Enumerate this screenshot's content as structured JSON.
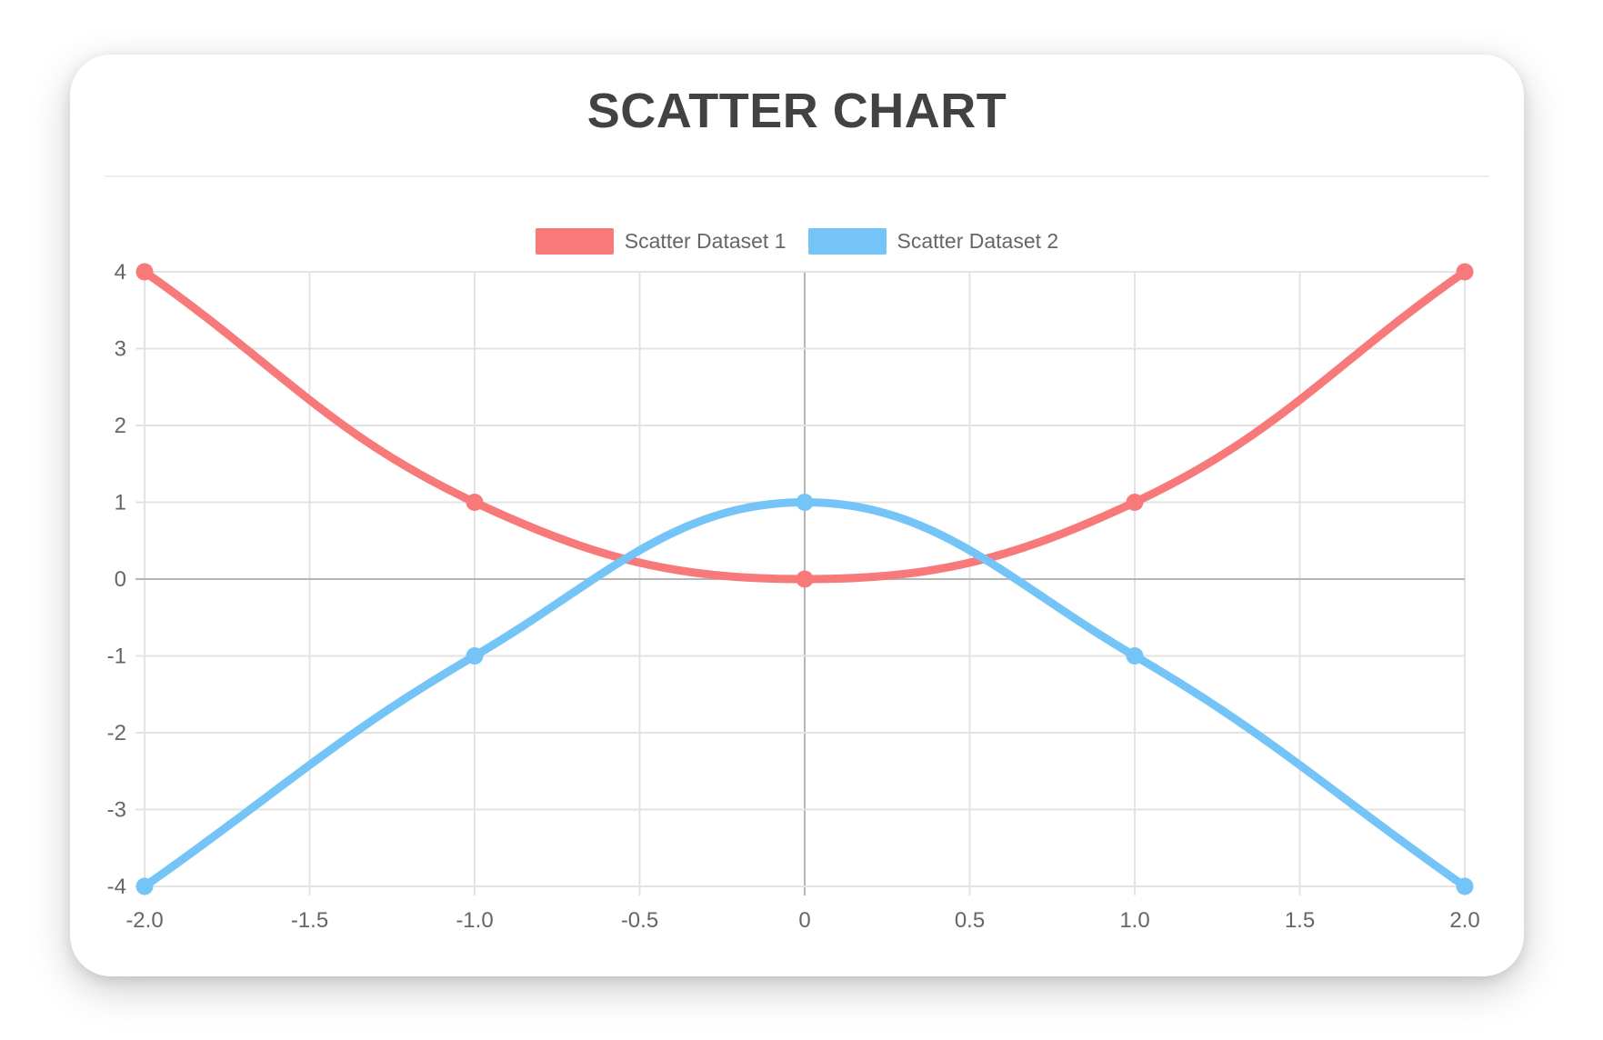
{
  "title": {
    "text": "SCATTER CHART"
  },
  "legend": {
    "items": [
      {
        "label": "Scatter Dataset 1",
        "color": "#f87979"
      },
      {
        "label": "Scatter Dataset 2",
        "color": "#74c4f7"
      }
    ]
  },
  "colors": {
    "grid": "#e3e3e3",
    "zero_line": "#b5b5b5",
    "tick_text": "#666666",
    "title_text": "#424242",
    "legend_text": "#666666",
    "divider": "#eeeeee",
    "card_bg": "#ffffff",
    "page_bg": "#ffffff"
  },
  "chart_data": {
    "type": "scatter",
    "title": "SCATTER CHART",
    "legend_position": "top",
    "grid": true,
    "xlim": [
      -2,
      2
    ],
    "ylim": [
      -4,
      4
    ],
    "x_ticks": {
      "values": [
        -2,
        -1.5,
        -1,
        -0.5,
        0,
        0.5,
        1,
        1.5,
        2
      ],
      "labels": [
        "-2.0",
        "-1.5",
        "-1.0",
        "-0.5",
        "0",
        "0.5",
        "1.0",
        "1.5",
        "2.0"
      ]
    },
    "y_ticks": {
      "values": [
        4,
        3,
        2,
        1,
        0,
        -1,
        -2,
        -3,
        -4
      ],
      "labels": [
        "4",
        "3",
        "2",
        "1",
        "0",
        "-1",
        "-2",
        "-3",
        "-4"
      ]
    },
    "series": [
      {
        "name": "Scatter Dataset 1",
        "color": "#f87979",
        "show_line": true,
        "tension": 0.4,
        "line_width": 9,
        "point_radius": 9.5,
        "points": [
          {
            "x": -2,
            "y": 4
          },
          {
            "x": -1,
            "y": 1
          },
          {
            "x": 0,
            "y": 0
          },
          {
            "x": 1,
            "y": 1
          },
          {
            "x": 2,
            "y": 4
          }
        ]
      },
      {
        "name": "Scatter Dataset 2",
        "color": "#74c4f7",
        "show_line": true,
        "tension": 0.4,
        "line_width": 9,
        "point_radius": 9.5,
        "points": [
          {
            "x": -2,
            "y": -4
          },
          {
            "x": -1,
            "y": -1
          },
          {
            "x": 0,
            "y": 1
          },
          {
            "x": 1,
            "y": -1
          },
          {
            "x": 2,
            "y": -4
          }
        ]
      }
    ]
  }
}
